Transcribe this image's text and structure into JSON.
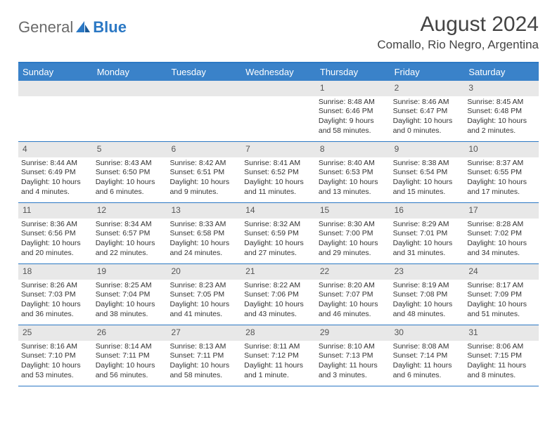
{
  "logo": {
    "text1": "General",
    "text2": "Blue"
  },
  "title": "August 2024",
  "location": "Comallo, Rio Negro, Argentina",
  "colors": {
    "header_bar": "#3a82c4",
    "border": "#2b78c4",
    "daynum_bg": "#e8e8e8",
    "text": "#333333",
    "logo_blue": "#2b78c4"
  },
  "dow": [
    "Sunday",
    "Monday",
    "Tuesday",
    "Wednesday",
    "Thursday",
    "Friday",
    "Saturday"
  ],
  "weeks": [
    [
      {
        "n": "",
        "sr": "",
        "ss": "",
        "dl": ""
      },
      {
        "n": "",
        "sr": "",
        "ss": "",
        "dl": ""
      },
      {
        "n": "",
        "sr": "",
        "ss": "",
        "dl": ""
      },
      {
        "n": "",
        "sr": "",
        "ss": "",
        "dl": ""
      },
      {
        "n": "1",
        "sr": "Sunrise: 8:48 AM",
        "ss": "Sunset: 6:46 PM",
        "dl": "Daylight: 9 hours and 58 minutes."
      },
      {
        "n": "2",
        "sr": "Sunrise: 8:46 AM",
        "ss": "Sunset: 6:47 PM",
        "dl": "Daylight: 10 hours and 0 minutes."
      },
      {
        "n": "3",
        "sr": "Sunrise: 8:45 AM",
        "ss": "Sunset: 6:48 PM",
        "dl": "Daylight: 10 hours and 2 minutes."
      }
    ],
    [
      {
        "n": "4",
        "sr": "Sunrise: 8:44 AM",
        "ss": "Sunset: 6:49 PM",
        "dl": "Daylight: 10 hours and 4 minutes."
      },
      {
        "n": "5",
        "sr": "Sunrise: 8:43 AM",
        "ss": "Sunset: 6:50 PM",
        "dl": "Daylight: 10 hours and 6 minutes."
      },
      {
        "n": "6",
        "sr": "Sunrise: 8:42 AM",
        "ss": "Sunset: 6:51 PM",
        "dl": "Daylight: 10 hours and 9 minutes."
      },
      {
        "n": "7",
        "sr": "Sunrise: 8:41 AM",
        "ss": "Sunset: 6:52 PM",
        "dl": "Daylight: 10 hours and 11 minutes."
      },
      {
        "n": "8",
        "sr": "Sunrise: 8:40 AM",
        "ss": "Sunset: 6:53 PM",
        "dl": "Daylight: 10 hours and 13 minutes."
      },
      {
        "n": "9",
        "sr": "Sunrise: 8:38 AM",
        "ss": "Sunset: 6:54 PM",
        "dl": "Daylight: 10 hours and 15 minutes."
      },
      {
        "n": "10",
        "sr": "Sunrise: 8:37 AM",
        "ss": "Sunset: 6:55 PM",
        "dl": "Daylight: 10 hours and 17 minutes."
      }
    ],
    [
      {
        "n": "11",
        "sr": "Sunrise: 8:36 AM",
        "ss": "Sunset: 6:56 PM",
        "dl": "Daylight: 10 hours and 20 minutes."
      },
      {
        "n": "12",
        "sr": "Sunrise: 8:34 AM",
        "ss": "Sunset: 6:57 PM",
        "dl": "Daylight: 10 hours and 22 minutes."
      },
      {
        "n": "13",
        "sr": "Sunrise: 8:33 AM",
        "ss": "Sunset: 6:58 PM",
        "dl": "Daylight: 10 hours and 24 minutes."
      },
      {
        "n": "14",
        "sr": "Sunrise: 8:32 AM",
        "ss": "Sunset: 6:59 PM",
        "dl": "Daylight: 10 hours and 27 minutes."
      },
      {
        "n": "15",
        "sr": "Sunrise: 8:30 AM",
        "ss": "Sunset: 7:00 PM",
        "dl": "Daylight: 10 hours and 29 minutes."
      },
      {
        "n": "16",
        "sr": "Sunrise: 8:29 AM",
        "ss": "Sunset: 7:01 PM",
        "dl": "Daylight: 10 hours and 31 minutes."
      },
      {
        "n": "17",
        "sr": "Sunrise: 8:28 AM",
        "ss": "Sunset: 7:02 PM",
        "dl": "Daylight: 10 hours and 34 minutes."
      }
    ],
    [
      {
        "n": "18",
        "sr": "Sunrise: 8:26 AM",
        "ss": "Sunset: 7:03 PM",
        "dl": "Daylight: 10 hours and 36 minutes."
      },
      {
        "n": "19",
        "sr": "Sunrise: 8:25 AM",
        "ss": "Sunset: 7:04 PM",
        "dl": "Daylight: 10 hours and 38 minutes."
      },
      {
        "n": "20",
        "sr": "Sunrise: 8:23 AM",
        "ss": "Sunset: 7:05 PM",
        "dl": "Daylight: 10 hours and 41 minutes."
      },
      {
        "n": "21",
        "sr": "Sunrise: 8:22 AM",
        "ss": "Sunset: 7:06 PM",
        "dl": "Daylight: 10 hours and 43 minutes."
      },
      {
        "n": "22",
        "sr": "Sunrise: 8:20 AM",
        "ss": "Sunset: 7:07 PM",
        "dl": "Daylight: 10 hours and 46 minutes."
      },
      {
        "n": "23",
        "sr": "Sunrise: 8:19 AM",
        "ss": "Sunset: 7:08 PM",
        "dl": "Daylight: 10 hours and 48 minutes."
      },
      {
        "n": "24",
        "sr": "Sunrise: 8:17 AM",
        "ss": "Sunset: 7:09 PM",
        "dl": "Daylight: 10 hours and 51 minutes."
      }
    ],
    [
      {
        "n": "25",
        "sr": "Sunrise: 8:16 AM",
        "ss": "Sunset: 7:10 PM",
        "dl": "Daylight: 10 hours and 53 minutes."
      },
      {
        "n": "26",
        "sr": "Sunrise: 8:14 AM",
        "ss": "Sunset: 7:11 PM",
        "dl": "Daylight: 10 hours and 56 minutes."
      },
      {
        "n": "27",
        "sr": "Sunrise: 8:13 AM",
        "ss": "Sunset: 7:11 PM",
        "dl": "Daylight: 10 hours and 58 minutes."
      },
      {
        "n": "28",
        "sr": "Sunrise: 8:11 AM",
        "ss": "Sunset: 7:12 PM",
        "dl": "Daylight: 11 hours and 1 minute."
      },
      {
        "n": "29",
        "sr": "Sunrise: 8:10 AM",
        "ss": "Sunset: 7:13 PM",
        "dl": "Daylight: 11 hours and 3 minutes."
      },
      {
        "n": "30",
        "sr": "Sunrise: 8:08 AM",
        "ss": "Sunset: 7:14 PM",
        "dl": "Daylight: 11 hours and 6 minutes."
      },
      {
        "n": "31",
        "sr": "Sunrise: 8:06 AM",
        "ss": "Sunset: 7:15 PM",
        "dl": "Daylight: 11 hours and 8 minutes."
      }
    ]
  ]
}
